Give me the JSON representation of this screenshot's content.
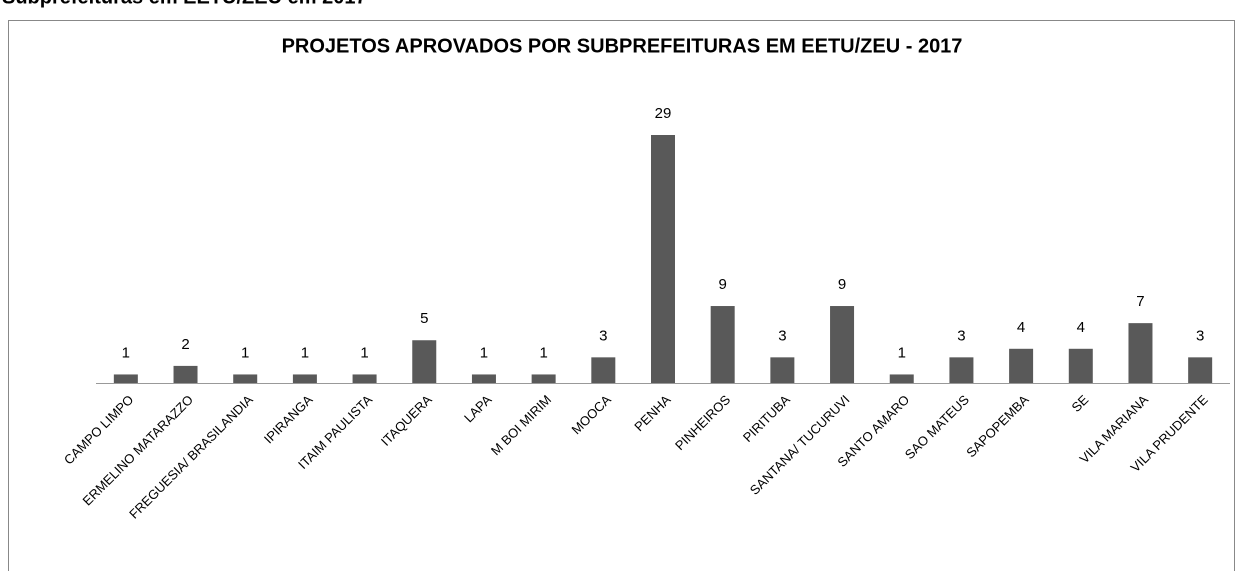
{
  "header": {
    "text": "Subprefeituras em EETU/ZEU em 2017"
  },
  "chart_data": {
    "type": "bar",
    "title": "PROJETOS APROVADOS POR SUBPREFEITURAS EM EETU/ZEU - 2017",
    "categories": [
      "CAMPO LIMPO",
      "ERMELINO MATARAZZO",
      "FREGUESIA/ BRASILANDIA",
      "IPIRANGA",
      "ITAIM PAULISTA",
      "ITAQUERA",
      "LAPA",
      "M BOI MIRIM",
      "MOOCA",
      "PENHA",
      "PINHEIROS",
      "PIRITUBA",
      "SANTANA/ TUCURUVI",
      "SANTO AMARO",
      "SAO MATEUS",
      "SAPOPEMBA",
      "SE",
      "VILA MARIANA",
      "VILA PRUDENTE"
    ],
    "values": [
      1,
      2,
      1,
      1,
      1,
      5,
      1,
      1,
      3,
      29,
      9,
      3,
      9,
      1,
      3,
      4,
      4,
      7,
      3
    ],
    "color": "#595959"
  }
}
